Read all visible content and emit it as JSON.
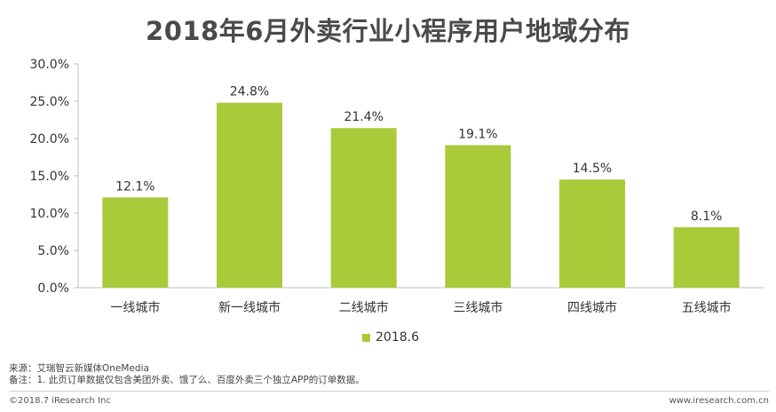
{
  "title": "2018年6月外卖行业小程序用户地域分布",
  "chart_data": {
    "type": "bar",
    "title": "2018年6月外卖行业小程序用户地域分布",
    "categories": [
      "一线城市",
      "新一线城市",
      "二线城市",
      "三线城市",
      "四线城市",
      "五线城市"
    ],
    "series": [
      {
        "name": "2018.6",
        "values": [
          12.1,
          24.8,
          21.4,
          19.1,
          14.5,
          8.1
        ],
        "labels": [
          "12.1%",
          "24.8%",
          "21.4%",
          "19.1%",
          "14.5%",
          "8.1%"
        ],
        "color": "#a9cb3a"
      }
    ],
    "ylim": [
      0,
      30
    ],
    "yticks": [
      "0.0%",
      "5.0%",
      "10.0%",
      "15.0%",
      "20.0%",
      "25.0%",
      "30.0%"
    ],
    "grid": false,
    "legend": "bottom-center"
  },
  "legend_label": "2018.6",
  "notes": {
    "source": "来源：艾瑞智云新媒体OneMedia",
    "remark": "备注：1. 此页订单数据仅包含美团外卖、饿了么、百度外卖三个独立APP的订单数据。"
  },
  "footer": {
    "copyright": "©2018.7 iResearch Inc",
    "website": "www.iresearch.com.cn"
  }
}
